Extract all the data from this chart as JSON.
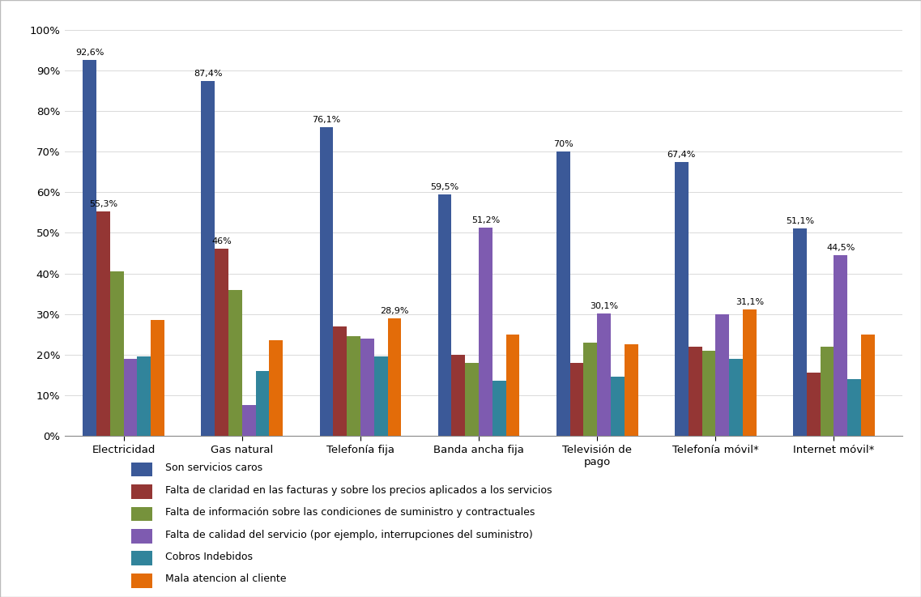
{
  "categories": [
    "Electricidad",
    "Gas natural",
    "Telefonía fija",
    "Banda ancha fija",
    "Televisión de\npago",
    "Telefonía móvil*",
    "Internet móvil*"
  ],
  "series": {
    "Son servicios caros": [
      92.6,
      87.4,
      76.1,
      59.5,
      70.0,
      67.4,
      51.1
    ],
    "Falta de claridad en las facturas y sobre los precios aplicados a los servicios": [
      55.3,
      46.0,
      27.0,
      20.0,
      18.0,
      22.0,
      15.5
    ],
    "Falta de información sobre las condiciones de suministro y contractuales": [
      40.5,
      36.0,
      24.5,
      18.0,
      23.0,
      21.0,
      22.0
    ],
    "Falta de calidad del servicio (por ejemplo, interrupciones del suministro)": [
      19.0,
      7.5,
      24.0,
      51.2,
      30.1,
      30.0,
      44.5
    ],
    "Cobros Indebidos": [
      19.5,
      16.0,
      19.5,
      13.5,
      14.5,
      19.0,
      14.0
    ],
    "Mala atencion al cliente": [
      28.5,
      23.5,
      28.9,
      25.0,
      22.5,
      31.1,
      25.0
    ]
  },
  "bar_colors": [
    "#3B5998",
    "#943634",
    "#76923C",
    "#7E5BB0",
    "#31849B",
    "#E36C09"
  ],
  "labeled_bars": {
    "Son servicios caros": [
      92.6,
      87.4,
      76.1,
      59.5,
      70.0,
      67.4,
      51.1
    ],
    "Falta de claridad en las facturas y sobre los precios aplicados a los servicios": [
      55.3,
      46.0,
      null,
      null,
      null,
      null,
      null
    ],
    "Falta de calidad del servicio (por ejemplo, interrupciones del suministro)": [
      null,
      null,
      null,
      51.2,
      30.1,
      null,
      44.5
    ],
    "Mala atencion al cliente": [
      null,
      null,
      28.9,
      null,
      null,
      31.1,
      null
    ]
  },
  "label_formats": {
    "Son servicios caros": [
      "92,6%",
      "87,4%",
      "76,1%",
      "59,5%",
      "70%",
      "67,4%",
      "51,1%"
    ],
    "Falta de claridad en las facturas y sobre los precios aplicados a los servicios": [
      "55,3%",
      "46%",
      null,
      null,
      null,
      null,
      null
    ],
    "Falta de calidad del servicio (por ejemplo, interrupciones del suministro)": [
      null,
      null,
      null,
      "51,2%",
      "30,1%",
      null,
      "44,5%"
    ],
    "Mala atencion al cliente": [
      null,
      null,
      "28,9%",
      null,
      null,
      "31,1%",
      null
    ]
  },
  "ylim": [
    0,
    100
  ],
  "yticks": [
    0,
    10,
    20,
    30,
    40,
    50,
    60,
    70,
    80,
    90,
    100
  ],
  "background_color": "#FFFFFF",
  "border_color": "#AAAAAA",
  "grid_color": "#D9D9D9",
  "legend_entries": [
    "Son servicios caros",
    "Falta de claridad en las facturas y sobre los precios aplicados a los servicios",
    "Falta de información sobre las condiciones de suministro y contractuales",
    "Falta de calidad del servicio (por ejemplo, interrupciones del suministro)",
    "Cobros Indebidos",
    "Mala atencion al cliente"
  ]
}
